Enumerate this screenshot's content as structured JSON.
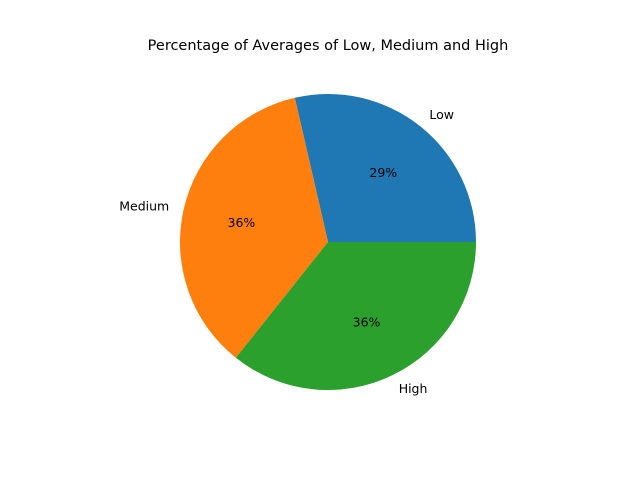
{
  "chart_data": {
    "type": "pie",
    "title": "Percentage of Averages of Low, Medium and High",
    "labels": [
      "Low",
      "Medium",
      "High"
    ],
    "values": [
      28.6,
      35.7,
      35.7
    ],
    "percent_labels": [
      "29%",
      "36%",
      "36%"
    ],
    "colors": [
      "#1f77b4",
      "#ff7f0e",
      "#2ca02c"
    ],
    "start_angle_deg": 0,
    "direction": "counterclockwise",
    "legend": "none"
  }
}
